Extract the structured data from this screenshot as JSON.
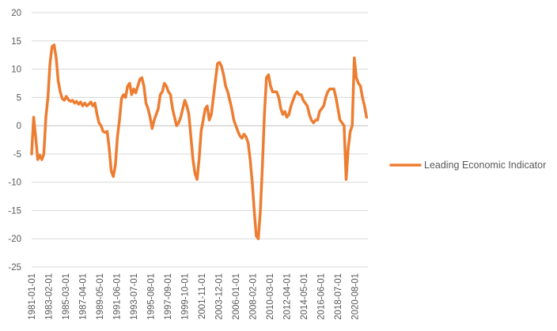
{
  "chart_data": {
    "type": "line",
    "title": "",
    "xlabel": "",
    "ylabel": "",
    "ylim": [
      -25,
      20
    ],
    "yticks": [
      20,
      15,
      10,
      5,
      0,
      -5,
      -10,
      -15,
      -20,
      -25
    ],
    "x_range": [
      "1981-01-01",
      "2022-03-01"
    ],
    "x_tick_labels": [
      "1981-01-01",
      "1983-02-01",
      "1985-03-01",
      "1987-04-01",
      "1989-05-01",
      "1991-06-01",
      "1993-07-01",
      "1995-08-01",
      "1997-09-01",
      "1999-10-01",
      "2001-11-01",
      "2003-12-01",
      "2006-01-01",
      "2008-02-01",
      "2010-03-01",
      "2012-04-01",
      "2014-05-01",
      "2016-06-01",
      "2018-07-01",
      "2020-08-01"
    ],
    "gridlines": true,
    "legend_position": "right",
    "line_color": "#ed7d31",
    "series": [
      {
        "name": "Leading Economic Indicator",
        "points": [
          [
            "1981-01-01",
            -5.0
          ],
          [
            "1981-04-01",
            1.5
          ],
          [
            "1981-07-01",
            -2.0
          ],
          [
            "1981-10-01",
            -6.0
          ],
          [
            "1982-01-01",
            -5.2
          ],
          [
            "1982-04-01",
            -6.0
          ],
          [
            "1982-07-01",
            -5.0
          ],
          [
            "1982-10-01",
            1.5
          ],
          [
            "1983-01-01",
            5.0
          ],
          [
            "1983-04-01",
            11.0
          ],
          [
            "1983-07-01",
            14.0
          ],
          [
            "1983-10-01",
            14.3
          ],
          [
            "1984-01-01",
            12.0
          ],
          [
            "1984-04-01",
            8.0
          ],
          [
            "1984-07-01",
            6.0
          ],
          [
            "1984-10-01",
            4.8
          ],
          [
            "1985-01-01",
            4.5
          ],
          [
            "1985-04-01",
            5.2
          ],
          [
            "1985-07-01",
            4.6
          ],
          [
            "1985-10-01",
            4.3
          ],
          [
            "1986-01-01",
            4.5
          ],
          [
            "1986-04-01",
            4.0
          ],
          [
            "1986-07-01",
            4.3
          ],
          [
            "1986-10-01",
            3.8
          ],
          [
            "1987-01-01",
            4.2
          ],
          [
            "1987-04-01",
            3.5
          ],
          [
            "1987-07-01",
            4.0
          ],
          [
            "1987-10-01",
            3.5
          ],
          [
            "1988-01-01",
            3.8
          ],
          [
            "1988-04-01",
            4.2
          ],
          [
            "1988-07-01",
            3.5
          ],
          [
            "1988-10-01",
            4.0
          ],
          [
            "1989-01-01",
            2.0
          ],
          [
            "1989-04-01",
            0.5
          ],
          [
            "1989-07-01",
            0.0
          ],
          [
            "1989-10-01",
            -1.0
          ],
          [
            "1990-01-01",
            -1.2
          ],
          [
            "1990-04-01",
            -1.0
          ],
          [
            "1990-07-01",
            -4.0
          ],
          [
            "1990-10-01",
            -8.0
          ],
          [
            "1991-01-01",
            -9.0
          ],
          [
            "1991-04-01",
            -7.0
          ],
          [
            "1991-07-01",
            -2.0
          ],
          [
            "1991-10-01",
            1.0
          ],
          [
            "1992-01-01",
            4.8
          ],
          [
            "1992-04-01",
            5.5
          ],
          [
            "1992-07-01",
            5.0
          ],
          [
            "1992-10-01",
            7.0
          ],
          [
            "1993-01-01",
            7.5
          ],
          [
            "1993-04-01",
            5.5
          ],
          [
            "1993-07-01",
            6.5
          ],
          [
            "1993-10-01",
            5.8
          ],
          [
            "1994-01-01",
            7.0
          ],
          [
            "1994-04-01",
            8.2
          ],
          [
            "1994-07-01",
            8.5
          ],
          [
            "1994-10-01",
            7.0
          ],
          [
            "1995-01-01",
            4.0
          ],
          [
            "1995-04-01",
            3.0
          ],
          [
            "1995-07-01",
            1.5
          ],
          [
            "1995-10-01",
            -0.5
          ],
          [
            "1996-01-01",
            1.0
          ],
          [
            "1996-04-01",
            2.0
          ],
          [
            "1996-07-01",
            3.0
          ],
          [
            "1996-10-01",
            5.5
          ],
          [
            "1997-01-01",
            6.0
          ],
          [
            "1997-04-01",
            7.5
          ],
          [
            "1997-07-01",
            7.0
          ],
          [
            "1997-10-01",
            6.0
          ],
          [
            "1998-01-01",
            5.5
          ],
          [
            "1998-04-01",
            3.0
          ],
          [
            "1998-07-01",
            1.5
          ],
          [
            "1998-10-01",
            0.0
          ],
          [
            "1999-01-01",
            0.5
          ],
          [
            "1999-04-01",
            1.5
          ],
          [
            "1999-07-01",
            3.0
          ],
          [
            "1999-10-01",
            4.5
          ],
          [
            "2000-01-01",
            3.5
          ],
          [
            "2000-04-01",
            2.0
          ],
          [
            "2000-07-01",
            -2.0
          ],
          [
            "2000-10-01",
            -6.0
          ],
          [
            "2001-01-01",
            -8.5
          ],
          [
            "2001-04-01",
            -9.5
          ],
          [
            "2001-07-01",
            -6.0
          ],
          [
            "2001-10-01",
            -1.0
          ],
          [
            "2002-01-01",
            1.0
          ],
          [
            "2002-04-01",
            3.0
          ],
          [
            "2002-07-01",
            3.5
          ],
          [
            "2002-10-01",
            1.0
          ],
          [
            "2003-01-01",
            2.0
          ],
          [
            "2003-04-01",
            5.0
          ],
          [
            "2003-07-01",
            8.0
          ],
          [
            "2003-10-01",
            11.0
          ],
          [
            "2004-01-01",
            11.2
          ],
          [
            "2004-04-01",
            10.5
          ],
          [
            "2004-07-01",
            9.0
          ],
          [
            "2004-10-01",
            7.0
          ],
          [
            "2005-01-01",
            6.0
          ],
          [
            "2005-04-01",
            4.5
          ],
          [
            "2005-07-01",
            3.0
          ],
          [
            "2005-10-01",
            1.0
          ],
          [
            "2006-01-01",
            0.0
          ],
          [
            "2006-04-01",
            -1.0
          ],
          [
            "2006-07-01",
            -1.8
          ],
          [
            "2006-10-01",
            -2.2
          ],
          [
            "2007-01-01",
            -1.5
          ],
          [
            "2007-04-01",
            -2.0
          ],
          [
            "2007-07-01",
            -3.0
          ],
          [
            "2007-10-01",
            -6.0
          ],
          [
            "2008-01-01",
            -10.0
          ],
          [
            "2008-04-01",
            -15.0
          ],
          [
            "2008-07-01",
            -19.5
          ],
          [
            "2008-10-01",
            -20.0
          ],
          [
            "2009-01-01",
            -15.0
          ],
          [
            "2009-04-01",
            -7.0
          ],
          [
            "2009-07-01",
            2.0
          ],
          [
            "2009-10-01",
            8.5
          ],
          [
            "2010-01-01",
            9.0
          ],
          [
            "2010-04-01",
            7.0
          ],
          [
            "2010-07-01",
            6.0
          ],
          [
            "2010-10-01",
            6.0
          ],
          [
            "2011-01-01",
            6.0
          ],
          [
            "2011-04-01",
            5.0
          ],
          [
            "2011-07-01",
            3.0
          ],
          [
            "2011-10-01",
            2.0
          ],
          [
            "2012-01-01",
            2.5
          ],
          [
            "2012-04-01",
            1.5
          ],
          [
            "2012-07-01",
            2.0
          ],
          [
            "2012-10-01",
            3.5
          ],
          [
            "2013-01-01",
            4.5
          ],
          [
            "2013-04-01",
            5.5
          ],
          [
            "2013-07-01",
            6.0
          ],
          [
            "2013-10-01",
            5.5
          ],
          [
            "2014-01-01",
            5.5
          ],
          [
            "2014-04-01",
            4.5
          ],
          [
            "2014-07-01",
            4.0
          ],
          [
            "2014-10-01",
            3.5
          ],
          [
            "2015-01-01",
            2.0
          ],
          [
            "2015-04-01",
            1.0
          ],
          [
            "2015-07-01",
            0.5
          ],
          [
            "2015-10-01",
            1.0
          ],
          [
            "2016-01-01",
            1.0
          ],
          [
            "2016-04-01",
            2.5
          ],
          [
            "2016-07-01",
            3.0
          ],
          [
            "2016-10-01",
            3.5
          ],
          [
            "2017-01-01",
            5.0
          ],
          [
            "2017-04-01",
            6.0
          ],
          [
            "2017-07-01",
            6.5
          ],
          [
            "2017-10-01",
            6.5
          ],
          [
            "2018-01-01",
            6.5
          ],
          [
            "2018-04-01",
            5.0
          ],
          [
            "2018-07-01",
            3.0
          ],
          [
            "2018-10-01",
            1.0
          ],
          [
            "2019-01-01",
            0.5
          ],
          [
            "2019-04-01",
            0.0
          ],
          [
            "2019-07-01",
            -9.5
          ],
          [
            "2019-10-01",
            -4.0
          ],
          [
            "2020-01-01",
            -1.0
          ],
          [
            "2020-04-01",
            0.0
          ],
          [
            "2020-07-01",
            12.0
          ],
          [
            "2020-10-01",
            8.5
          ],
          [
            "2021-01-01",
            7.5
          ],
          [
            "2021-04-01",
            7.0
          ],
          [
            "2021-07-01",
            5.0
          ],
          [
            "2021-10-01",
            3.5
          ],
          [
            "2022-01-01",
            1.5
          ]
        ]
      }
    ]
  }
}
